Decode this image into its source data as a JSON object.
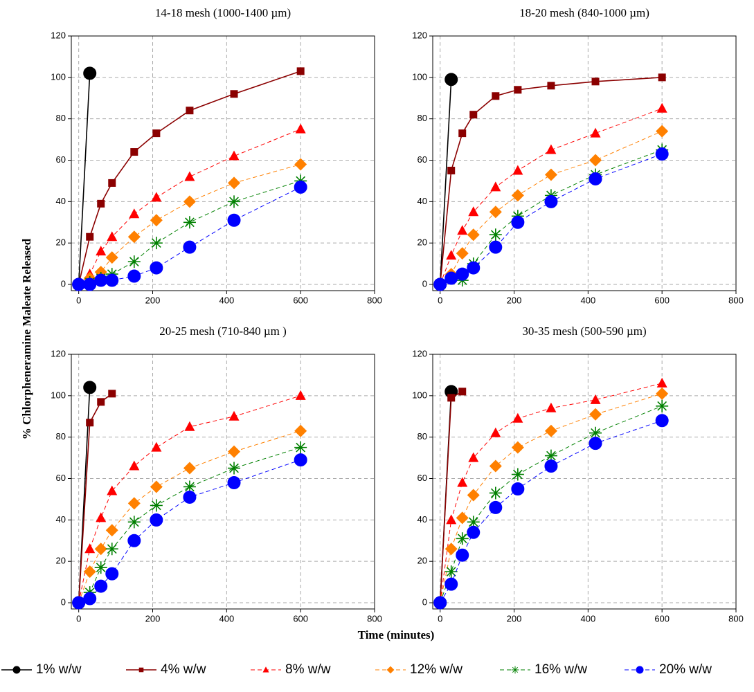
{
  "chart_data": [
    {
      "type": "line",
      "title": "14-18 mesh (1000-1400 µm)",
      "x": [
        0,
        30,
        60,
        90,
        150,
        210,
        300,
        420,
        600
      ],
      "xlim": [
        -20,
        800
      ],
      "xticks": [
        0,
        200,
        400,
        600,
        800
      ],
      "ylim": [
        -3,
        120
      ],
      "yticks": [
        0,
        20,
        40,
        60,
        80,
        100,
        120
      ],
      "grid": true,
      "series": [
        {
          "name": "1% w/w",
          "color": "#000000",
          "line_style": "solid",
          "marker": "circle",
          "values": [
            0,
            102,
            null,
            null,
            null,
            null,
            null,
            null,
            null
          ]
        },
        {
          "name": "4% w/w",
          "color": "#8b0000",
          "line_style": "solid",
          "marker": "square",
          "values": [
            0,
            23,
            39,
            49,
            64,
            73,
            84,
            92,
            103
          ]
        },
        {
          "name": "8% w/w",
          "color": "#ff0000",
          "line_style": "dashed",
          "marker": "triangle",
          "values": [
            0,
            5,
            16,
            23,
            34,
            42,
            52,
            62,
            75
          ]
        },
        {
          "name": "12% w/w",
          "color": "#ff8000",
          "line_style": "dashed",
          "marker": "diamond",
          "values": [
            0,
            3,
            6,
            13,
            23,
            31,
            40,
            49,
            58
          ]
        },
        {
          "name": "16% w/w",
          "color": "#008000",
          "line_style": "dashed",
          "marker": "star",
          "values": [
            0,
            1,
            3,
            5,
            11,
            20,
            30,
            40,
            50
          ]
        },
        {
          "name": "20% w/w",
          "color": "#0000ff",
          "line_style": "dashed",
          "marker": "circle",
          "values": [
            0,
            0,
            2,
            2,
            4,
            8,
            18,
            31,
            47
          ]
        }
      ]
    },
    {
      "type": "line",
      "title": "18-20 mesh (840-1000 µm)",
      "x": [
        0,
        30,
        60,
        90,
        150,
        210,
        300,
        420,
        600
      ],
      "xlim": [
        -20,
        800
      ],
      "xticks": [
        0,
        200,
        400,
        600,
        800
      ],
      "ylim": [
        -3,
        120
      ],
      "yticks": [
        0,
        20,
        40,
        60,
        80,
        100,
        120
      ],
      "grid": true,
      "series": [
        {
          "name": "1% w/w",
          "color": "#000000",
          "line_style": "solid",
          "marker": "circle",
          "values": [
            0,
            99,
            null,
            null,
            null,
            null,
            null,
            null,
            null
          ]
        },
        {
          "name": "4% w/w",
          "color": "#8b0000",
          "line_style": "solid",
          "marker": "square",
          "values": [
            0,
            55,
            73,
            82,
            91,
            94,
            96,
            98,
            100
          ]
        },
        {
          "name": "8% w/w",
          "color": "#ff0000",
          "line_style": "dashed",
          "marker": "triangle",
          "values": [
            0,
            14,
            26,
            35,
            47,
            55,
            65,
            73,
            85
          ]
        },
        {
          "name": "12% w/w",
          "color": "#ff8000",
          "line_style": "dashed",
          "marker": "diamond",
          "values": [
            0,
            5,
            15,
            24,
            35,
            43,
            53,
            60,
            74
          ]
        },
        {
          "name": "16% w/w",
          "color": "#008000",
          "line_style": "dashed",
          "marker": "star",
          "values": [
            0,
            3,
            2,
            10,
            24,
            33,
            43,
            53,
            65
          ]
        },
        {
          "name": "20% w/w",
          "color": "#0000ff",
          "line_style": "dashed",
          "marker": "circle",
          "values": [
            0,
            3,
            5,
            8,
            18,
            30,
            40,
            51,
            63
          ]
        }
      ]
    },
    {
      "type": "line",
      "title": "20-25 mesh (710-840 µm )",
      "x": [
        0,
        30,
        60,
        90,
        150,
        210,
        300,
        420,
        600
      ],
      "xlim": [
        -20,
        800
      ],
      "xticks": [
        0,
        200,
        400,
        600,
        800
      ],
      "ylim": [
        -3,
        120
      ],
      "yticks": [
        0,
        20,
        40,
        60,
        80,
        100,
        120
      ],
      "grid": true,
      "series": [
        {
          "name": "1% w/w",
          "color": "#000000",
          "line_style": "solid",
          "marker": "circle",
          "values": [
            0,
            104,
            null,
            null,
            null,
            null,
            null,
            null,
            null
          ]
        },
        {
          "name": "4% w/w",
          "color": "#8b0000",
          "line_style": "solid",
          "marker": "square",
          "values": [
            0,
            87,
            97,
            101,
            null,
            null,
            null,
            null,
            null
          ]
        },
        {
          "name": "8% w/w",
          "color": "#ff0000",
          "line_style": "dashed",
          "marker": "triangle",
          "values": [
            0,
            26,
            41,
            54,
            66,
            75,
            85,
            90,
            100
          ]
        },
        {
          "name": "12% w/w",
          "color": "#ff8000",
          "line_style": "dashed",
          "marker": "diamond",
          "values": [
            0,
            15,
            26,
            35,
            48,
            56,
            65,
            73,
            83
          ]
        },
        {
          "name": "16% w/w",
          "color": "#008000",
          "line_style": "dashed",
          "marker": "star",
          "values": [
            0,
            5,
            17,
            26,
            39,
            47,
            56,
            65,
            75
          ]
        },
        {
          "name": "20% w/w",
          "color": "#0000ff",
          "line_style": "dashed",
          "marker": "circle",
          "values": [
            0,
            2,
            8,
            14,
            30,
            40,
            51,
            58,
            69
          ]
        }
      ]
    },
    {
      "type": "line",
      "title": "30-35 mesh (500-590 µm)",
      "x": [
        0,
        30,
        60,
        90,
        150,
        210,
        300,
        420,
        600
      ],
      "xlim": [
        -20,
        800
      ],
      "xticks": [
        0,
        200,
        400,
        600,
        800
      ],
      "ylim": [
        -3,
        120
      ],
      "yticks": [
        0,
        20,
        40,
        60,
        80,
        100,
        120
      ],
      "grid": true,
      "series": [
        {
          "name": "1% w/w",
          "color": "#000000",
          "line_style": "solid",
          "marker": "circle",
          "values": [
            0,
            102,
            null,
            null,
            null,
            null,
            null,
            null,
            null
          ]
        },
        {
          "name": "4% w/w",
          "color": "#8b0000",
          "line_style": "solid",
          "marker": "square",
          "values": [
            0,
            99,
            102,
            null,
            null,
            null,
            null,
            null,
            null
          ]
        },
        {
          "name": "8% w/w",
          "color": "#ff0000",
          "line_style": "dashed",
          "marker": "triangle",
          "values": [
            0,
            40,
            58,
            70,
            82,
            89,
            94,
            98,
            106
          ]
        },
        {
          "name": "12% w/w",
          "color": "#ff8000",
          "line_style": "dashed",
          "marker": "diamond",
          "values": [
            0,
            26,
            41,
            52,
            66,
            75,
            83,
            91,
            101
          ]
        },
        {
          "name": "16% w/w",
          "color": "#008000",
          "line_style": "dashed",
          "marker": "star",
          "values": [
            0,
            15,
            31,
            39,
            53,
            62,
            71,
            82,
            95
          ]
        },
        {
          "name": "20% w/w",
          "color": "#0000ff",
          "line_style": "dashed",
          "marker": "circle",
          "values": [
            0,
            9,
            23,
            34,
            46,
            55,
            66,
            77,
            88
          ]
        }
      ]
    }
  ],
  "ylabel": "% Chlorpheneramine Maleate Released",
  "xlabel": "Time (minutes)"
}
